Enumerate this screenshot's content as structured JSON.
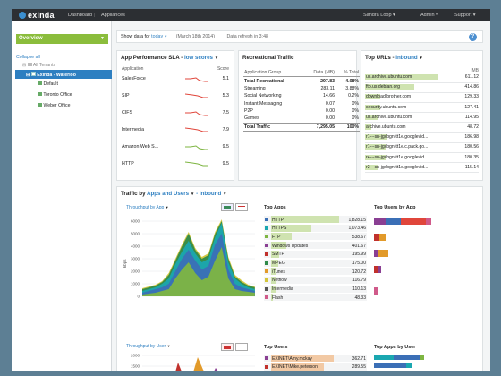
{
  "topbar": {
    "logo": "exinda",
    "nav": [
      "Dashboard",
      "Appliances"
    ],
    "right": [
      "Sandra Loop ▾",
      "Admin ▾",
      "Support ▾"
    ]
  },
  "sidebar": {
    "overview": "Overview",
    "collapse": "Collapse all",
    "tree": [
      "All Tenants",
      "Exinda - Waterloo",
      "Default",
      "Toronto Office",
      "Weber Office"
    ]
  },
  "filter": {
    "show": "Show data for",
    "period": "today",
    "date": "(March 18th 2014)",
    "refresh": "Data refresh in 3:48"
  },
  "sla": {
    "title": "App Performance SLA -",
    "mode": "low scores",
    "headers": [
      "Application",
      "Score"
    ],
    "rows": [
      {
        "app": "SalesForce",
        "score": "5.1"
      },
      {
        "app": "SIP",
        "score": "5.3"
      },
      {
        "app": "CIFS",
        "score": "7.5"
      },
      {
        "app": "Intermedia",
        "score": "7.9"
      },
      {
        "app": "Amazon Web S...",
        "score": "9.5"
      },
      {
        "app": "HTTP",
        "score": "9.5"
      }
    ]
  },
  "rec": {
    "title": "Recreational Traffic",
    "headers": [
      "Application Group",
      "Data (MB)",
      "% Total"
    ],
    "rows": [
      [
        "Total Recreational",
        "297.83",
        "4.08%"
      ],
      [
        "Streaming",
        "283.11",
        "3.88%"
      ],
      [
        "Social Networking",
        "14.66",
        "0.2%"
      ],
      [
        "Instant Messaging",
        "0.07",
        "0%"
      ],
      [
        "P2P",
        "0.00",
        "0%"
      ],
      [
        "Games",
        "0.00",
        "0%"
      ],
      [
        "Total Traffic",
        "7,295.05",
        "100%"
      ]
    ]
  },
  "urls": {
    "title": "Top URLs -",
    "mode": "inbound",
    "header": "MB",
    "rows": [
      {
        "url": "us.archive.ubuntu.com",
        "mb": "611.12",
        "frac": 0.86
      },
      {
        "url": "ftp.us.debian.org",
        "mb": "414.86",
        "frac": 0.58
      },
      {
        "url": "download.brother.com",
        "mb": "129.33",
        "frac": 0.18
      },
      {
        "url": "security.ubuntu.com",
        "mb": "127.41",
        "frac": 0.18
      },
      {
        "url": "us.archive.ubuntu.com",
        "mb": "114.95",
        "frac": 0.16
      },
      {
        "url": "archive.ubuntu.com",
        "mb": "48.72",
        "frac": 0.07
      },
      {
        "url": "r1---sn-jgxbgn-tt1e.googlevid...",
        "mb": "186.98",
        "frac": 0.26
      },
      {
        "url": "r1---sn-jgxbgn-tt1e.c.pack.go...",
        "mb": "180.56",
        "frac": 0.25
      },
      {
        "url": "r4---sn-jgxbgn-tt1e.googlevid...",
        "mb": "180.35",
        "frac": 0.25
      },
      {
        "url": "r2---sn-jgxbgn-tt1d.googlevid...",
        "mb": "115.14",
        "frac": 0.16
      }
    ]
  },
  "traffic": {
    "title_a": "Traffic by",
    "title_b": "Apps and Users",
    "title_c": "- inbound",
    "by_app": "Throughput by App",
    "by_user": "Throughput by User",
    "yaxis_label": "kbps",
    "app_ticks": [
      "6000",
      "5000",
      "4000",
      "3000",
      "2000",
      "1000",
      "0"
    ],
    "user_ticks": [
      "2000",
      "1500"
    ],
    "top_apps_title": "Top Apps",
    "top_apps": [
      {
        "name": "HTTP",
        "val": "1,828.15",
        "color": "#3b6fb6",
        "frac": 0.98
      },
      {
        "name": "HTTPS",
        "val": "1,073.46",
        "color": "#1aa7b0",
        "frac": 0.58
      },
      {
        "name": "FTP",
        "val": "538.67",
        "color": "#7eb542",
        "frac": 0.29
      },
      {
        "name": "Windows Updates",
        "val": "401.67",
        "color": "#8a3f93",
        "frac": 0.22
      },
      {
        "name": "SMTP",
        "val": "195.99",
        "color": "#c1312c",
        "frac": 0.11
      },
      {
        "name": "MPEG",
        "val": "175.00",
        "color": "#2f8a4a",
        "frac": 0.1
      },
      {
        "name": "iTunes",
        "val": "120.72",
        "color": "#e29a2a",
        "frac": 0.07
      },
      {
        "name": "Netflow",
        "val": "116.79",
        "color": "#d4c63a",
        "frac": 0.06
      },
      {
        "name": "Intermedia",
        "val": "110.13",
        "color": "#555555",
        "frac": 0.06
      },
      {
        "name": "Flash",
        "val": "48.33",
        "color": "#d05a8a",
        "frac": 0.03
      }
    ],
    "top_users_by_app_title": "Top Users by App",
    "top_users_title": "Top Users",
    "top_users": [
      {
        "name": "EXINET\\Amy.mckay",
        "val": "362.71",
        "color": "#8a3f93",
        "frac": 0.9
      },
      {
        "name": "EXINET\\Mike.peterson",
        "val": "289.55",
        "color": "#c1312c",
        "frac": 0.75
      },
      {
        "name": "EXINET\\Kevin.siddique",
        "val": "277.57",
        "color": "#2f8a4a",
        "frac": 0.72
      },
      {
        "name": "EXINET\\Vince.hurrell",
        "val": "225.86",
        "color": "#3b6fb6",
        "frac": 0.58
      }
    ],
    "top_apps_by_user_title": "Top Apps by User"
  }
}
